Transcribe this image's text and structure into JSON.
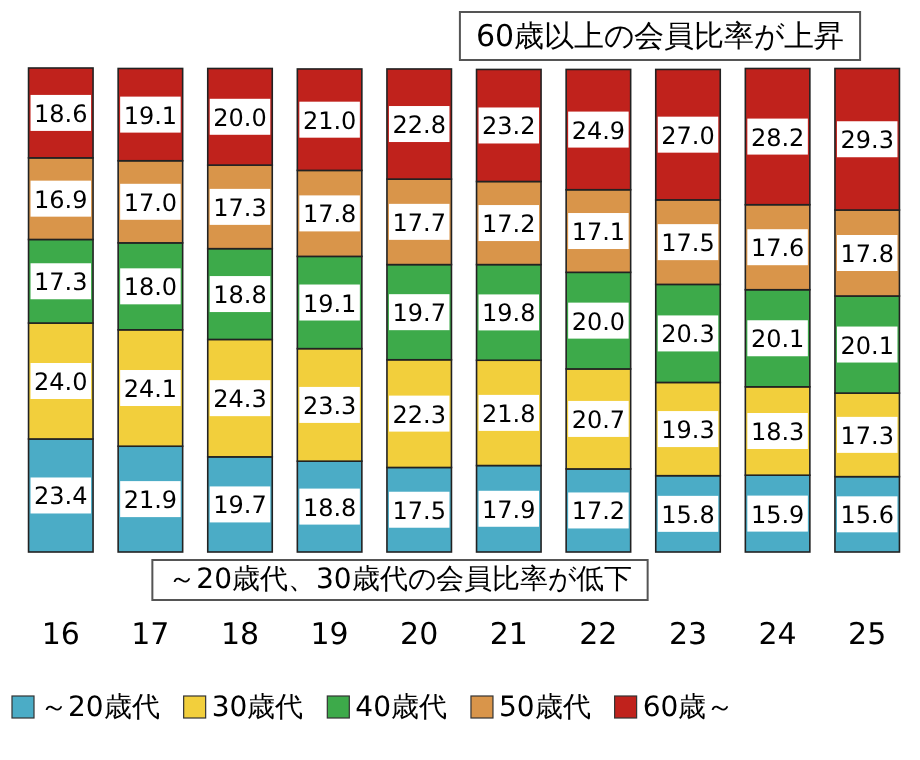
{
  "chart_data": {
    "type": "bar",
    "stacked": true,
    "categories": [
      "16",
      "17",
      "18",
      "19",
      "20",
      "21",
      "22",
      "23",
      "24",
      "25"
    ],
    "series": [
      {
        "name": "～20歳代",
        "color": "#4bacc6",
        "values": [
          23.4,
          21.9,
          19.7,
          18.8,
          17.5,
          17.9,
          17.2,
          15.8,
          15.9,
          15.6
        ],
        "value_labels": [
          "23.4",
          "21.9",
          "19.7",
          "18.8",
          "17.5",
          "17.9",
          "17.2",
          "15.8",
          "15.9",
          "15.6"
        ]
      },
      {
        "name": "30歳代",
        "color": "#f2cf3c",
        "values": [
          24.0,
          24.1,
          24.3,
          23.3,
          22.3,
          21.8,
          20.7,
          19.3,
          18.3,
          17.3
        ],
        "value_labels": [
          "24.0",
          "24.1",
          "24.3",
          "23.3",
          "22.3",
          "21.8",
          "20.7",
          "19.3",
          "18.3",
          "17.3"
        ]
      },
      {
        "name": "40歳代",
        "color": "#3daa4a",
        "values": [
          17.3,
          18.0,
          18.8,
          19.1,
          19.7,
          19.8,
          20.0,
          20.3,
          20.1,
          20.1
        ],
        "value_labels": [
          "17.3",
          "18.0",
          "18.8",
          "19.1",
          "19.7",
          "19.8",
          "20.0",
          "20.3",
          "20.1",
          "20.1"
        ]
      },
      {
        "name": "50歳代",
        "color": "#d9954a",
        "values": [
          16.9,
          17.0,
          17.3,
          17.8,
          17.7,
          17.2,
          17.1,
          17.5,
          17.6,
          17.8
        ],
        "value_labels": [
          "16.9",
          "17.0",
          "17.3",
          "17.8",
          "17.7",
          "17.2",
          "17.1",
          "17.5",
          "17.6",
          "17.8"
        ]
      },
      {
        "name": "60歳～",
        "color": "#c0221c",
        "values": [
          18.6,
          19.1,
          20.0,
          21.0,
          22.8,
          23.2,
          24.9,
          27.0,
          28.2,
          29.3
        ],
        "value_labels": [
          "18.6",
          "19.1",
          "20.0",
          "21.0",
          "22.8",
          "23.2",
          "24.9",
          "27.0",
          "28.2",
          "29.3"
        ]
      }
    ],
    "annotations": [
      "60歳以上の会員比率が上昇",
      "～20歳代、30歳代の会員比率が低下"
    ],
    "legend": "bottom"
  }
}
